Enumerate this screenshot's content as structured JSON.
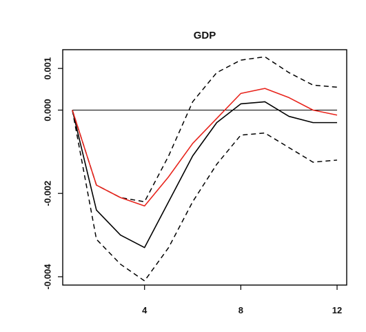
{
  "chart_data": {
    "type": "line",
    "title": "GDP",
    "xlabel": "",
    "ylabel": "",
    "xlim": [
      0.6,
      12.4
    ],
    "ylim": [
      -0.0042,
      0.00145
    ],
    "x_ticks": [
      4,
      8,
      12
    ],
    "x_tick_labels": [
      "4",
      "8",
      "12"
    ],
    "y_ticks": [
      -0.004,
      -0.002,
      0.0,
      0.001
    ],
    "y_tick_labels": [
      "-0.004",
      "-0.002",
      "0.000",
      "0.001"
    ],
    "zero_line": 0.0,
    "x": [
      1,
      2,
      3,
      4,
      5,
      6,
      7,
      8,
      9,
      10,
      11,
      12
    ],
    "series": [
      {
        "role": "lower-band",
        "color": "#000000",
        "style": "dashed",
        "values": [
          0.0,
          -0.0031,
          -0.0037,
          -0.0041,
          -0.0033,
          -0.0022,
          -0.0013,
          -0.0006,
          -0.00055,
          -0.0009,
          -0.00125,
          -0.0012
        ]
      },
      {
        "role": "upper-band",
        "color": "#000000",
        "style": "dashed",
        "values": [
          0.0,
          -0.0018,
          -0.0021,
          -0.0022,
          -0.0011,
          0.0002,
          0.0009,
          0.0012,
          0.00128,
          0.0009,
          0.0006,
          0.00055
        ]
      },
      {
        "role": "point-estimate",
        "color": "#000000",
        "style": "solid",
        "values": [
          0.0,
          -0.0024,
          -0.003,
          -0.0033,
          -0.0022,
          -0.0011,
          -0.0003,
          0.00015,
          0.0002,
          -0.00015,
          -0.0003,
          -0.0003
        ]
      },
      {
        "role": "alternative-estimate",
        "color": "#e8231b",
        "style": "solid",
        "values": [
          0.0,
          -0.0018,
          -0.0021,
          -0.0023,
          -0.0016,
          -0.0008,
          -0.0002,
          0.0004,
          0.00052,
          0.0003,
          0.0,
          -0.00012
        ]
      }
    ],
    "grid": false,
    "legend": "none"
  }
}
